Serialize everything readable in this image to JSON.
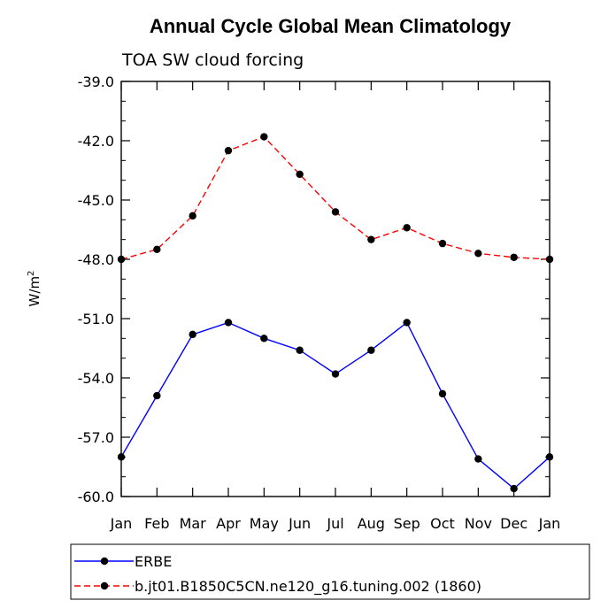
{
  "chart_data": {
    "type": "line",
    "title": "Annual Cycle Global Mean Climatology",
    "subtitle": "TOA SW cloud forcing",
    "ylabel": "W/m",
    "ylabel_sup": "2",
    "xlabel": "",
    "categories": [
      "Jan",
      "Feb",
      "Mar",
      "Apr",
      "May",
      "Jun",
      "Jul",
      "Aug",
      "Sep",
      "Oct",
      "Nov",
      "Dec",
      "Jan"
    ],
    "ylim": [
      -60.0,
      -39.0
    ],
    "yticks": [
      "-39.0",
      "-42.0",
      "-45.0",
      "-48.0",
      "-51.0",
      "-54.0",
      "-57.0",
      "-60.0"
    ],
    "ytick_values": [
      -39,
      -42,
      -45,
      -48,
      -51,
      -54,
      -57,
      -60
    ],
    "series": [
      {
        "name": "ERBE",
        "color": "#0000ff",
        "dash": "solid",
        "values": [
          -58.0,
          -54.9,
          -51.8,
          -51.2,
          -52.0,
          -52.6,
          -53.8,
          -52.6,
          -51.2,
          -54.8,
          -58.1,
          -59.6,
          -58.0
        ]
      },
      {
        "name": "b.jt01.B1850C5CN.ne120_g16.tuning.002 (1860)",
        "color": "#ff0000",
        "dash": "dashed",
        "values": [
          -48.0,
          -47.5,
          -45.8,
          -42.5,
          -41.8,
          -43.7,
          -45.6,
          -47.0,
          -46.4,
          -47.2,
          -47.7,
          -47.9,
          -48.0
        ]
      }
    ]
  }
}
